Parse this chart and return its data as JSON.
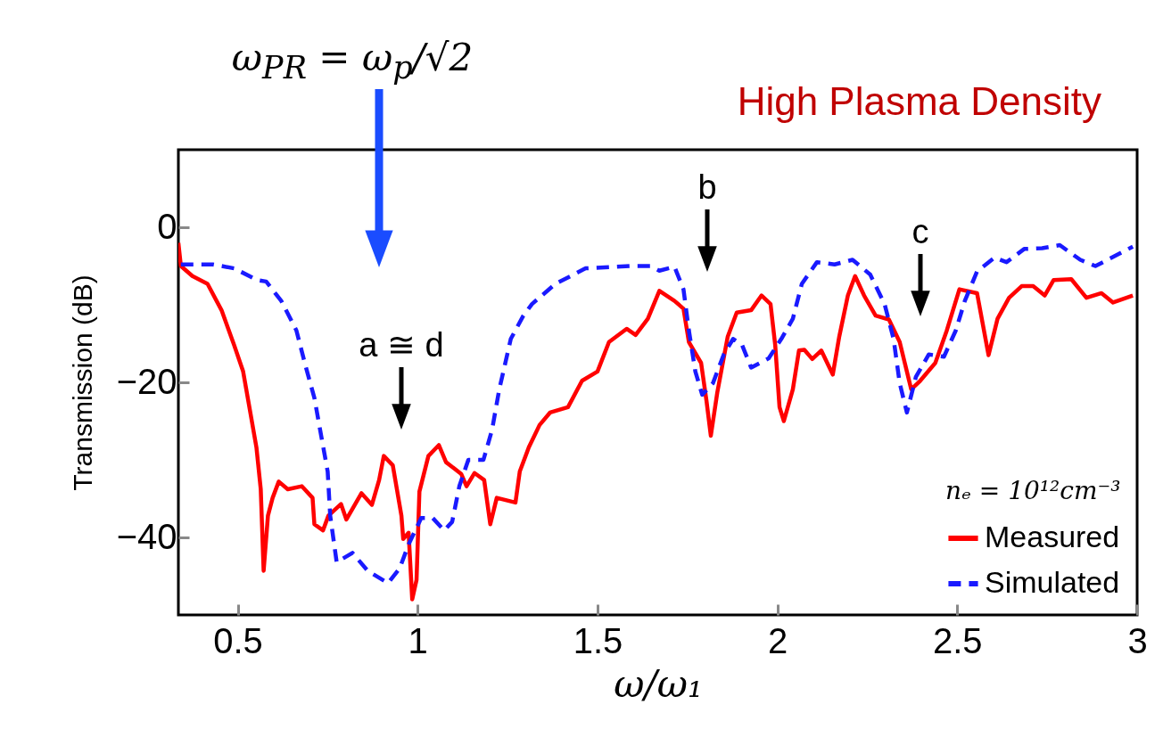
{
  "chart_data": {
    "type": "line",
    "title": "High Plasma Density",
    "xlabel": "ω/ω₁",
    "ylabel": "Transmission (dB)",
    "legend_title": "nₑ = 10¹²cm⁻³",
    "xlim": [
      0.335,
      3
    ],
    "ylim": [
      -50,
      10
    ],
    "xticks": [
      0.5,
      1,
      1.5,
      2,
      2.5,
      3
    ],
    "yticks": [
      -40,
      -20,
      0
    ],
    "legend": "bottom right",
    "grid": false,
    "series": [
      {
        "name": "Measured",
        "color": "#ff0000",
        "line_style": "solid",
        "x": [
          0.335,
          0.342,
          0.374,
          0.416,
          0.455,
          0.49,
          0.515,
          0.535,
          0.552,
          0.564,
          0.572,
          0.584,
          0.597,
          0.614,
          0.639,
          0.678,
          0.708,
          0.713,
          0.737,
          0.752,
          0.787,
          0.802,
          0.844,
          0.873,
          0.893,
          0.906,
          0.931,
          0.955,
          0.96,
          0.975,
          0.985,
          0.997,
          1.005,
          1.03,
          1.059,
          1.079,
          1.121,
          1.136,
          1.158,
          1.185,
          1.202,
          1.22,
          1.272,
          1.284,
          1.309,
          1.339,
          1.368,
          1.418,
          1.457,
          1.5,
          1.532,
          1.581,
          1.606,
          1.64,
          1.672,
          1.714,
          1.739,
          1.754,
          1.788,
          1.803,
          1.815,
          1.833,
          1.862,
          1.887,
          1.927,
          1.956,
          1.981,
          1.994,
          2.006,
          2.018,
          2.043,
          2.06,
          2.075,
          2.097,
          2.122,
          2.154,
          2.172,
          2.196,
          2.216,
          2.241,
          2.273,
          2.31,
          2.34,
          2.372,
          2.397,
          2.439,
          2.471,
          2.506,
          2.555,
          2.587,
          2.612,
          2.644,
          2.679,
          2.711,
          2.743,
          2.768,
          2.817,
          2.859,
          2.901,
          2.933,
          2.988
        ],
        "values": [
          -2,
          -5,
          -6.3,
          -7.3,
          -10.7,
          -15.2,
          -18.6,
          -23.9,
          -28.4,
          -33.8,
          -44.3,
          -37.2,
          -34.9,
          -32.8,
          -33.8,
          -33.4,
          -34.9,
          -38.3,
          -39.1,
          -37.2,
          -35.7,
          -37.7,
          -34.3,
          -35.8,
          -32.6,
          -29.5,
          -30.7,
          -37.2,
          -40.2,
          -39.4,
          -48,
          -45.5,
          -34.1,
          -29.5,
          -28.1,
          -30.3,
          -31.8,
          -33.4,
          -31.7,
          -32.6,
          -38.3,
          -34.9,
          -35.5,
          -31.5,
          -28.4,
          -25.5,
          -23.9,
          -23.2,
          -19.8,
          -18.6,
          -14.8,
          -13.1,
          -13.9,
          -11.8,
          -8.2,
          -9.5,
          -10.5,
          -14.8,
          -17.5,
          -22.4,
          -26.9,
          -21.3,
          -14.1,
          -11,
          -10.7,
          -8.8,
          -9.9,
          -15.2,
          -23.2,
          -25,
          -20.9,
          -15.9,
          -15.8,
          -17,
          -15.9,
          -19,
          -14.1,
          -8.8,
          -6.3,
          -8.8,
          -11.4,
          -11.9,
          -14.8,
          -20.9,
          -19.8,
          -17.5,
          -13.3,
          -8,
          -8.5,
          -16.5,
          -11.8,
          -9.1,
          -7.6,
          -7.6,
          -8.8,
          -6.8,
          -6.7,
          -9.1,
          -8.5,
          -9.7,
          -8.8
        ]
      },
      {
        "name": "Simulated",
        "color": "#1a1aff",
        "line_style": "dashed",
        "x": [
          0.342,
          0.431,
          0.49,
          0.554,
          0.579,
          0.621,
          0.663,
          0.688,
          0.713,
          0.732,
          0.75,
          0.757,
          0.775,
          0.819,
          0.861,
          0.918,
          0.95,
          0.975,
          1.01,
          1.042,
          1.074,
          1.096,
          1.116,
          1.141,
          1.183,
          1.207,
          1.227,
          1.259,
          1.294,
          1.318,
          1.383,
          1.467,
          1.59,
          1.647,
          1.672,
          1.714,
          1.739,
          1.754,
          1.772,
          1.791,
          1.821,
          1.851,
          1.877,
          1.902,
          1.927,
          1.976,
          2.011,
          2.043,
          2.068,
          2.11,
          2.159,
          2.209,
          2.258,
          2.298,
          2.323,
          2.34,
          2.36,
          2.385,
          2.421,
          2.463,
          2.496,
          2.521,
          2.555,
          2.604,
          2.637,
          2.686,
          2.736,
          2.785,
          2.842,
          2.884,
          2.926,
          2.988
        ],
        "values": [
          -4.8,
          -4.8,
          -5.3,
          -6.8,
          -7,
          -9.5,
          -13.3,
          -17.8,
          -22,
          -26.9,
          -31.5,
          -37.2,
          -43.2,
          -42,
          -44.3,
          -45.9,
          -44,
          -40.9,
          -37.5,
          -37.5,
          -39.1,
          -38,
          -33.4,
          -30,
          -30,
          -26.1,
          -20.9,
          -14.4,
          -11.4,
          -9.9,
          -7.3,
          -5.3,
          -5,
          -5,
          -5.6,
          -5.1,
          -8,
          -13.3,
          -18.6,
          -21.6,
          -20.1,
          -16.4,
          -14.4,
          -15.2,
          -18.1,
          -16.9,
          -14.4,
          -11.8,
          -7.3,
          -4.5,
          -4.8,
          -4.2,
          -6.1,
          -9.9,
          -14.4,
          -20.1,
          -23.9,
          -19.3,
          -16.4,
          -16.7,
          -13.3,
          -9.5,
          -5.7,
          -3.9,
          -4.5,
          -2.8,
          -2.7,
          -2.3,
          -4.2,
          -5,
          -4,
          -2.5
        ]
      }
    ],
    "annotations": [
      "ω$_{PR}$ = ω$_{p}$/√2",
      "a ≅ d",
      "b",
      "c"
    ]
  }
}
